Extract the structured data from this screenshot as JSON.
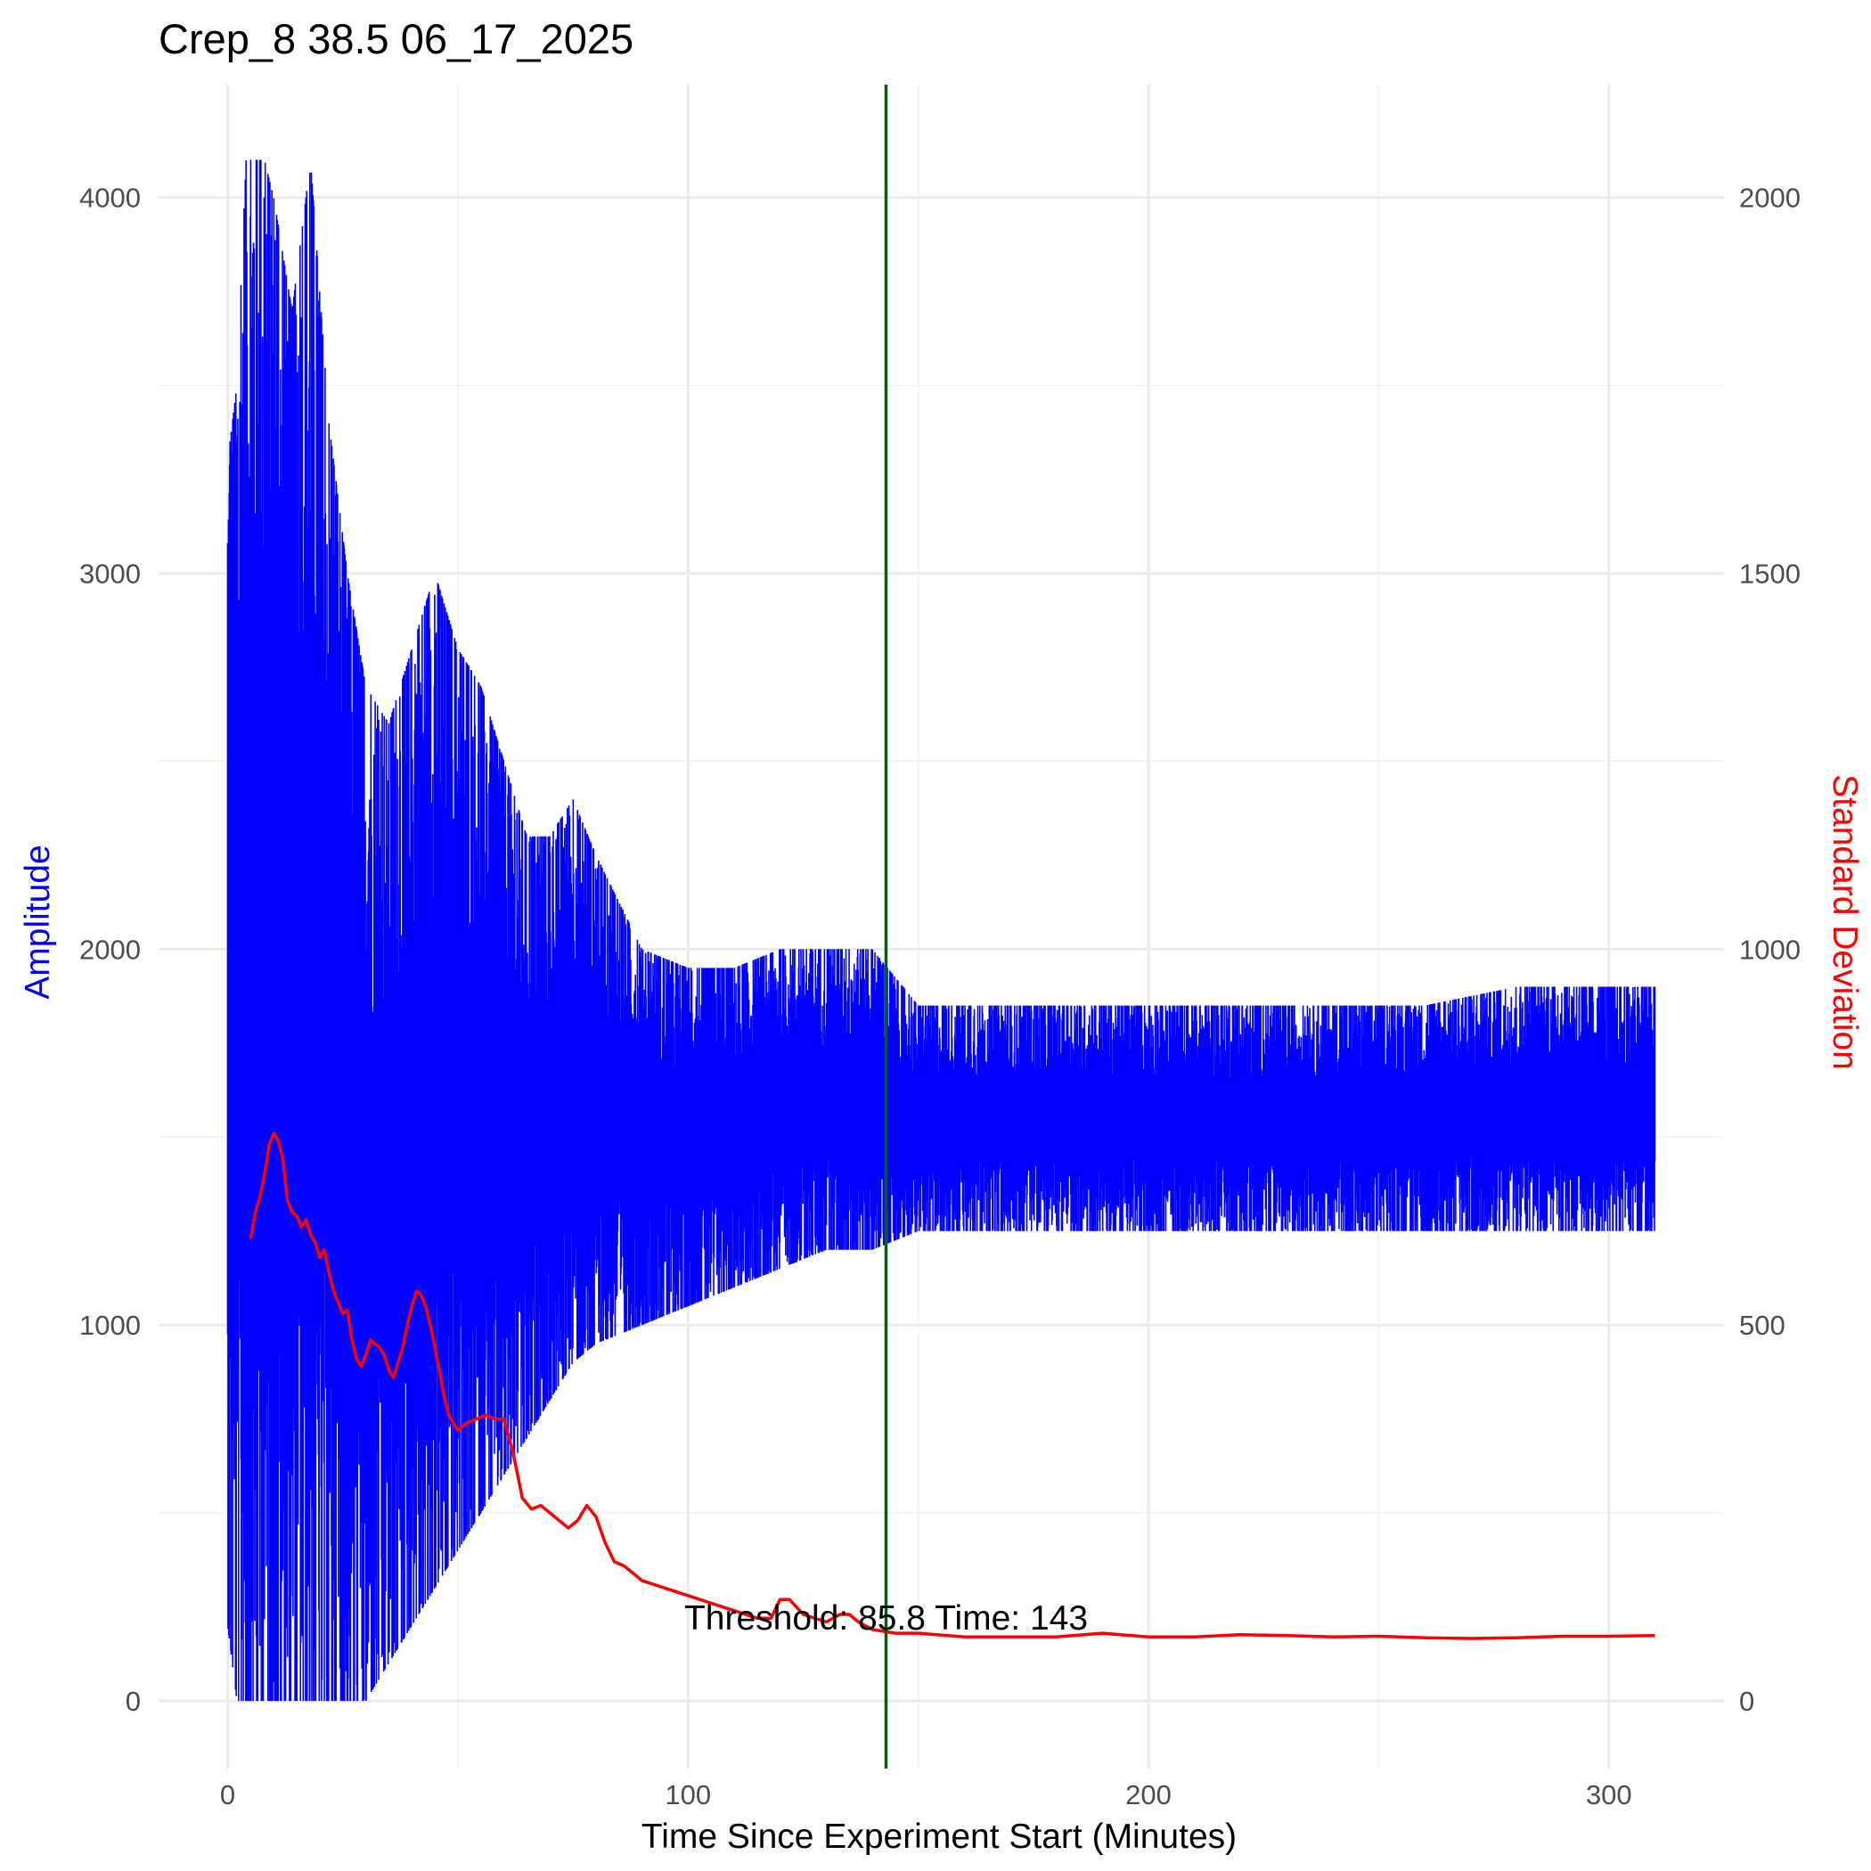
{
  "chart_data": {
    "type": "line",
    "title": "Crep_8 38.5 06_17_2025",
    "xlabel": "Time Since Experiment Start (Minutes)",
    "ylabel": "Amplitude",
    "y2label": "Standard Deviation",
    "xlim": [
      -15,
      325
    ],
    "ylim": [
      -180,
      4300
    ],
    "y2lim": [
      -90,
      2150
    ],
    "x_ticks": [
      0,
      100,
      200,
      300
    ],
    "x_tick_labels": [
      "0",
      "100",
      "200",
      "300"
    ],
    "y_ticks": [
      0,
      1000,
      2000,
      3000,
      4000
    ],
    "y_tick_labels": [
      "0",
      "1000",
      "2000",
      "3000",
      "4000"
    ],
    "y2_ticks": [
      0,
      500,
      1000,
      1500,
      2000
    ],
    "y2_tick_labels": [
      "0",
      "500",
      "1000",
      "1500",
      "2000"
    ],
    "grid": true,
    "legend": "none",
    "colors": {
      "amplitude": "#0000ff",
      "std": "#ff0000",
      "threshold_line": "#006400",
      "ylabel": "#0000ff",
      "y2label": "#ff0000",
      "grid": "#ebebeb"
    },
    "series": [
      {
        "name": "Amplitude",
        "axis": "left",
        "color": "#0000ff",
        "note": "dense signal; envelope of min/max per time bin (Amplitude units)",
        "envelope": {
          "x": [
            0,
            2,
            4,
            6,
            8,
            10,
            14,
            18,
            22,
            26,
            30,
            35,
            40,
            45,
            50,
            55,
            60,
            65,
            70,
            75,
            80,
            90,
            100,
            110,
            120,
            130,
            140,
            150,
            160,
            170,
            180,
            190,
            200,
            220,
            240,
            260,
            280,
            300,
            310
          ],
          "max": [
            3300,
            3500,
            4100,
            4100,
            4100,
            4000,
            3700,
            4100,
            3400,
            3000,
            2700,
            2600,
            2800,
            3000,
            2800,
            2700,
            2500,
            2300,
            2300,
            2400,
            2250,
            2000,
            1950,
            1950,
            2000,
            2000,
            2000,
            1850,
            1850,
            1850,
            1850,
            1850,
            1850,
            1850,
            1850,
            1850,
            1900,
            1900,
            1900
          ],
          "min": [
            200,
            0,
            0,
            0,
            0,
            0,
            0,
            0,
            0,
            0,
            0,
            100,
            200,
            300,
            400,
            500,
            600,
            700,
            800,
            900,
            950,
            1000,
            1050,
            1100,
            1150,
            1200,
            1200,
            1250,
            1250,
            1250,
            1250,
            1250,
            1250,
            1250,
            1250,
            1250,
            1250,
            1250,
            1250
          ]
        }
      },
      {
        "name": "Standard Deviation",
        "axis": "right",
        "color": "#ff0000",
        "x": [
          5,
          6,
          7,
          8,
          9,
          10,
          11,
          12,
          13,
          14,
          15,
          16,
          17,
          18,
          19,
          20,
          21,
          22,
          23,
          24,
          25,
          26,
          27,
          28,
          29,
          30,
          31,
          32,
          33,
          34,
          35,
          36,
          37,
          38,
          39,
          40,
          41,
          42,
          43,
          44,
          45,
          46,
          47,
          48,
          49,
          50,
          52,
          54,
          56,
          58,
          60,
          62,
          64,
          66,
          68,
          70,
          72,
          74,
          76,
          78,
          80,
          82,
          84,
          86,
          88,
          90,
          95,
          100,
          105,
          110,
          115,
          118,
          120,
          122,
          125,
          130,
          133,
          135,
          137,
          140,
          145,
          150,
          160,
          170,
          180,
          190,
          200,
          210,
          220,
          230,
          240,
          250,
          260,
          270,
          280,
          290,
          300,
          310
        ],
        "y": [
          615,
          650,
          670,
          700,
          740,
          755,
          745,
          720,
          665,
          650,
          645,
          630,
          640,
          620,
          610,
          590,
          600,
          570,
          545,
          530,
          515,
          520,
          480,
          455,
          445,
          460,
          480,
          475,
          470,
          460,
          440,
          430,
          450,
          470,
          500,
          525,
          545,
          540,
          525,
          500,
          470,
          440,
          405,
          380,
          370,
          360,
          370,
          375,
          380,
          375,
          375,
          330,
          270,
          255,
          260,
          250,
          240,
          230,
          240,
          260,
          245,
          210,
          185,
          180,
          170,
          160,
          150,
          140,
          130,
          120,
          110,
          110,
          135,
          135,
          115,
          105,
          115,
          115,
          105,
          95,
          90,
          90,
          85,
          85,
          85,
          90,
          85,
          85,
          88,
          87,
          85,
          86,
          84,
          83,
          84,
          86,
          86,
          87
        ]
      }
    ],
    "vline": {
      "x": 143,
      "color": "#006400"
    },
    "annotation": {
      "text": "Threshold: 85.8 Time: 143",
      "x": 143,
      "y": 95
    }
  }
}
